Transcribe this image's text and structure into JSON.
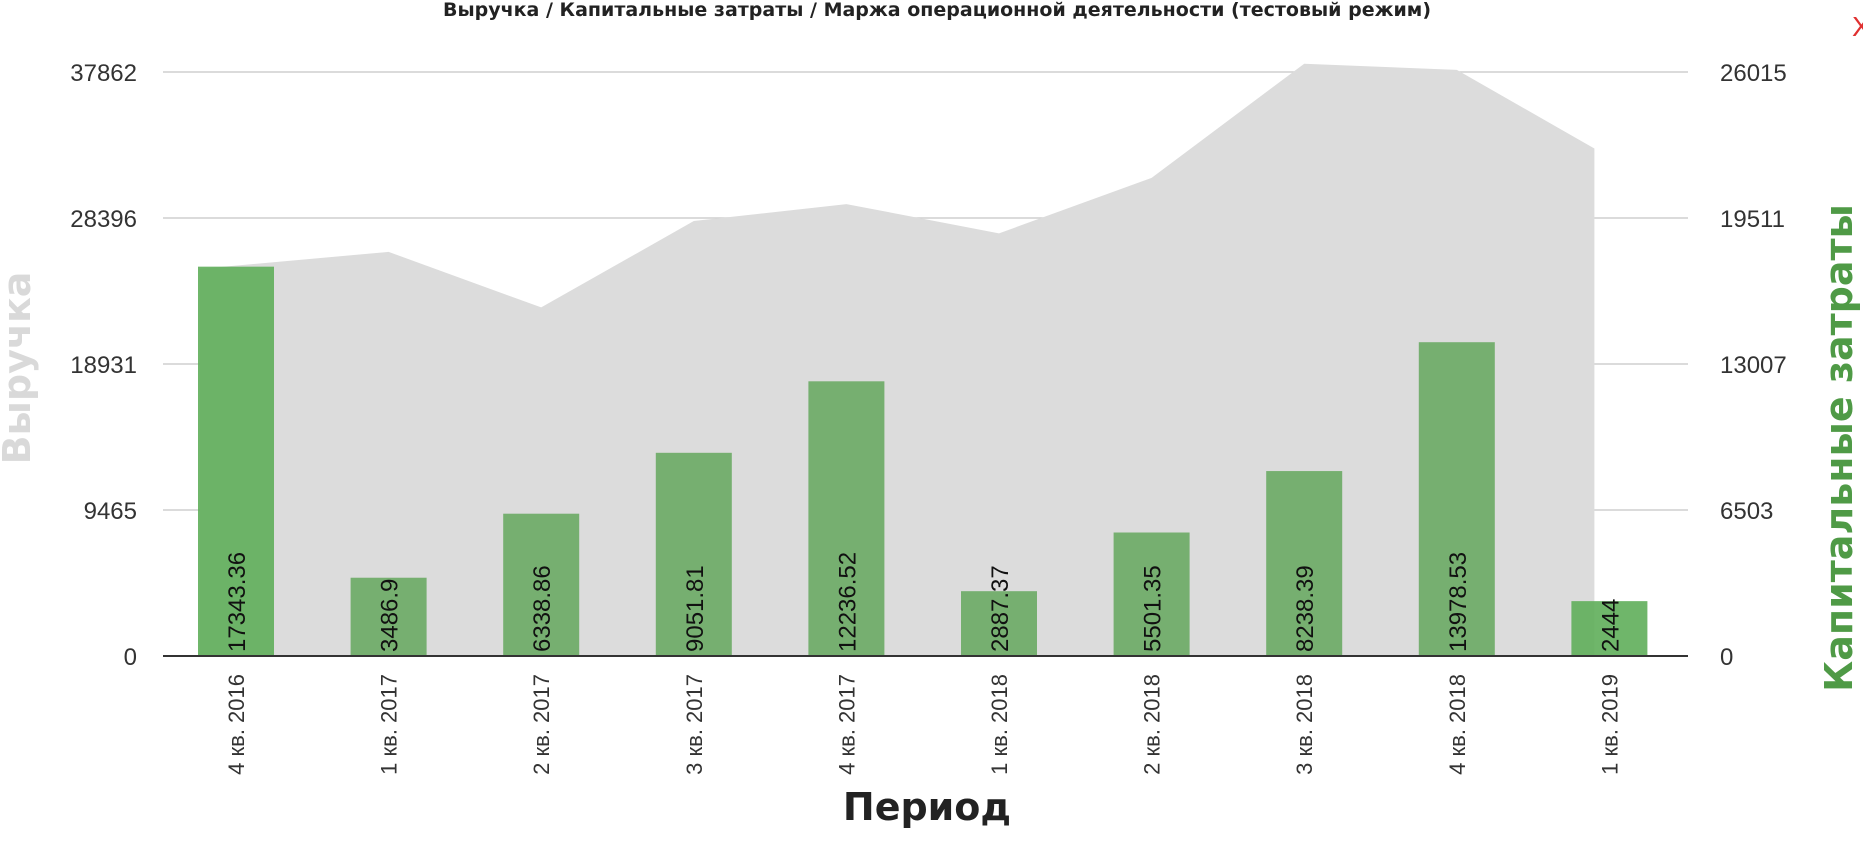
{
  "close_label": "X",
  "chart_data": {
    "type": "bar",
    "title": "Выручка / Капитальные затраты / Маржа операционной деятельности (тестовый режим)",
    "xlabel": "Период",
    "ylabel_left": "Выручка",
    "ylabel_right": "Капитальные затраты",
    "categories": [
      "4 кв. 2016",
      "1 кв. 2017",
      "2 кв. 2017",
      "3 кв. 2017",
      "4 кв. 2017",
      "1 кв. 2018",
      "2 кв. 2018",
      "3 кв. 2018",
      "4 кв. 2018",
      "1 кв. 2019"
    ],
    "left_axis": {
      "ticks": [
        0,
        9465,
        18931,
        28396,
        37862
      ],
      "ylim": [
        0,
        37862
      ]
    },
    "right_axis": {
      "ticks": [
        0,
        6503,
        13007,
        19511,
        26015
      ],
      "ylim": [
        0,
        26015
      ]
    },
    "grid": true,
    "series": [
      {
        "name": "Выручка",
        "type": "area",
        "axis": "left",
        "color": "#dcdcdc",
        "values": [
          25100,
          26200,
          22600,
          28200,
          29300,
          27400,
          31000,
          38400,
          38000,
          32900
        ]
      },
      {
        "name": "Капитальные затраты",
        "type": "bar",
        "axis": "right",
        "color": "#6aaa64",
        "values": [
          17343.36,
          3486.9,
          6338.86,
          9051.81,
          12236.52,
          2887.37,
          5501.35,
          8238.39,
          13978.53,
          2444
        ],
        "labels": [
          "17343.36",
          "3486.9",
          "6338.86",
          "9051.81",
          "12236.52",
          "2887.37",
          "5501.35",
          "8238.39",
          "13978.53",
          "2444"
        ],
        "edge_colors": [
          "#5fae5a",
          "#6aaa64",
          "#6aaa64",
          "#6aaa64",
          "#6aaa64",
          "#6aaa64",
          "#6aaa64",
          "#6aaa64",
          "#6aaa64",
          "#5fae5a"
        ]
      }
    ]
  }
}
